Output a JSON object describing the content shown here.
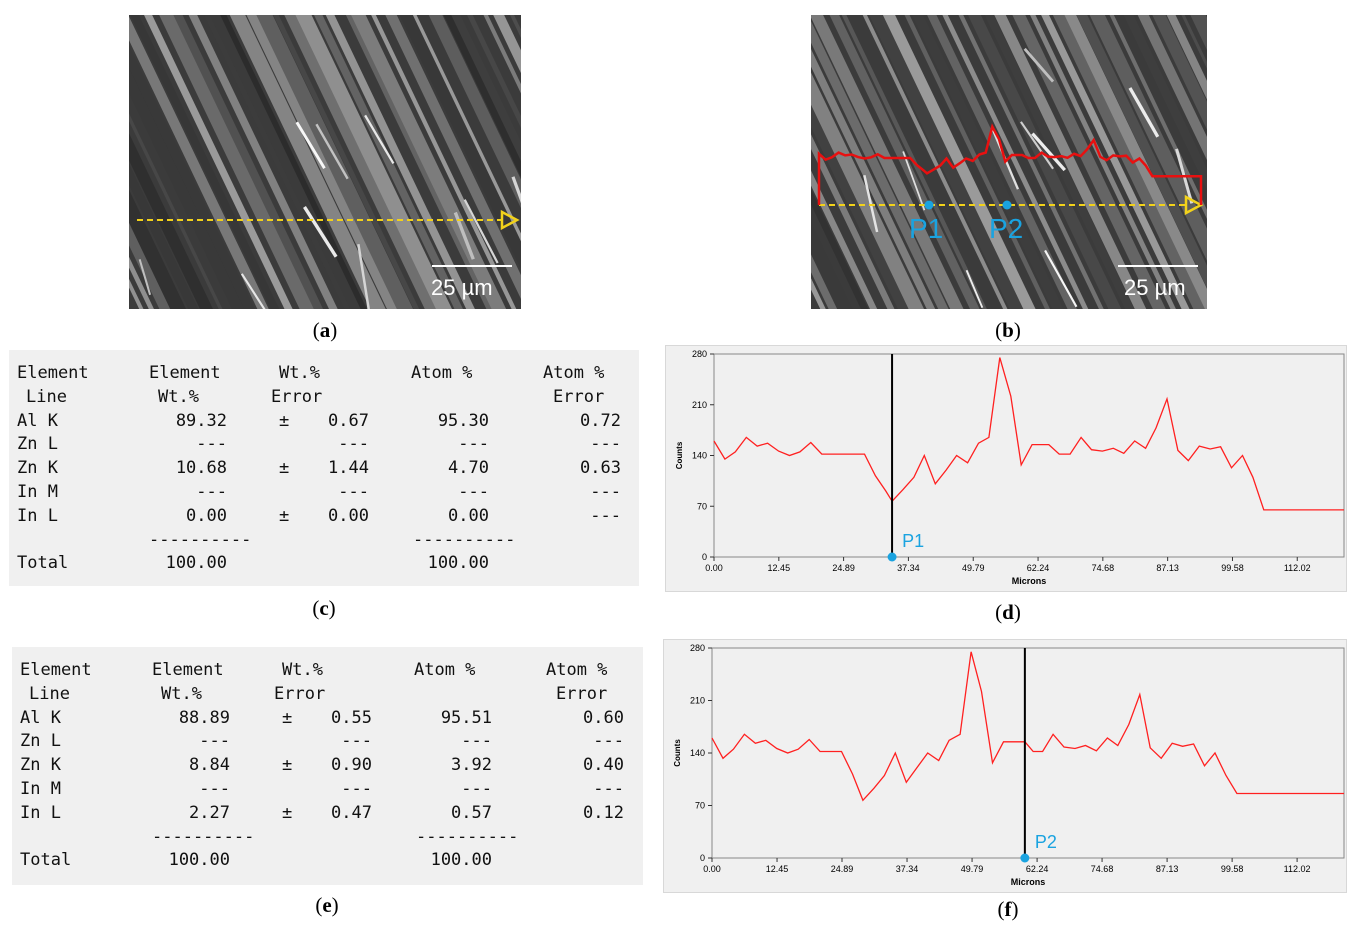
{
  "figures": {
    "a": {
      "caption": "a",
      "scale_bar": "25 µm"
    },
    "b": {
      "caption": "b",
      "scale_bar": "25 µm",
      "points": [
        "P1",
        "P2"
      ]
    },
    "c": {
      "caption": "c"
    },
    "d": {
      "caption": "d"
    },
    "e": {
      "caption": "e"
    },
    "f": {
      "caption": "f"
    }
  },
  "tables": {
    "headers": [
      [
        "Element",
        "Line"
      ],
      [
        "Element",
        "Wt.%"
      ],
      [
        "Wt.%",
        "Error"
      ],
      [
        "Atom %",
        ""
      ],
      [
        "Atom %",
        "Error"
      ]
    ],
    "c": {
      "rows": [
        [
          "Al K",
          "89.32",
          "±",
          "0.67",
          "95.30",
          "0.72"
        ],
        [
          "Zn L",
          "---",
          "",
          "---",
          "---",
          "---"
        ],
        [
          "Zn K",
          "10.68",
          "±",
          "1.44",
          "4.70",
          "0.63"
        ],
        [
          "In M",
          "---",
          "",
          "---",
          "---",
          "---"
        ],
        [
          "In L",
          "0.00",
          "±",
          "0.00",
          "0.00",
          "---"
        ]
      ],
      "separator": "----------",
      "total": [
        "Total",
        "100.00",
        "100.00"
      ]
    },
    "e": {
      "rows": [
        [
          "Al K",
          "88.89",
          "±",
          "0.55",
          "95.51",
          "0.60"
        ],
        [
          "Zn L",
          "---",
          "",
          "---",
          "---",
          "---"
        ],
        [
          "Zn K",
          "8.84",
          "±",
          "0.90",
          "3.92",
          "0.40"
        ],
        [
          "In M",
          "---",
          "",
          "---",
          "---",
          "---"
        ],
        [
          "In L",
          "2.27",
          "±",
          "0.47",
          "0.57",
          "0.12"
        ]
      ],
      "separator": "----------",
      "total": [
        "Total",
        "100.00",
        "100.00"
      ]
    }
  },
  "chart_data": [
    {
      "type": "line",
      "panel": "d",
      "xlabel": "Microns",
      "ylabel": "Counts",
      "x_ticks": [
        "0.00",
        "12.45",
        "24.89",
        "37.34",
        "49.79",
        "62.24",
        "74.68",
        "87.13",
        "99.58",
        "112.02"
      ],
      "y_ticks": [
        "0",
        "70",
        "140",
        "210",
        "280"
      ],
      "xlim": [
        0,
        121
      ],
      "ylim": [
        0,
        280
      ],
      "marker": {
        "label": "P1",
        "x": 34.2
      },
      "series_color": "#ff2020",
      "x": [
        0,
        2.1,
        4.1,
        6.2,
        8.3,
        10.3,
        12.4,
        14.5,
        16.5,
        18.6,
        20.7,
        22.7,
        24.8,
        26.9,
        28.9,
        31,
        33,
        34.2,
        36.3,
        38.4,
        40.4,
        42.5,
        44.6,
        46.6,
        48.7,
        50.8,
        52.8,
        54.9,
        57,
        59,
        61.1,
        62.8,
        64.3,
        66.3,
        68.4,
        70.5,
        72.5,
        74.6,
        76.7,
        78.7,
        80.8,
        82.9,
        84.9,
        87,
        89.1,
        91.1,
        93.2,
        95.3,
        97.3,
        99.4,
        101.5,
        103.5,
        105.6,
        107.7,
        109.7,
        111.8,
        113.9,
        115.9,
        118,
        121
      ],
      "y": [
        160,
        135,
        145,
        165,
        153,
        157,
        146,
        140,
        145,
        158,
        142,
        142,
        142,
        142,
        142,
        112,
        91,
        77,
        93,
        110,
        140,
        101,
        120,
        140,
        130,
        157,
        165,
        275,
        222,
        127,
        155,
        155,
        155,
        142,
        142,
        165,
        148,
        146,
        150,
        143,
        160,
        150,
        178,
        218,
        147,
        133,
        153,
        149,
        152,
        123,
        140,
        110,
        65,
        65,
        65,
        65,
        65,
        65,
        65,
        65
      ]
    },
    {
      "type": "line",
      "panel": "f",
      "xlabel": "Microns",
      "ylabel": "Counts",
      "x_ticks": [
        "0.00",
        "12.45",
        "24.89",
        "37.34",
        "49.79",
        "62.24",
        "74.68",
        "87.13",
        "99.58",
        "112.02"
      ],
      "y_ticks": [
        "0",
        "70",
        "140",
        "210",
        "280"
      ],
      "xlim": [
        0,
        121
      ],
      "ylim": [
        0,
        280
      ],
      "marker": {
        "label": "P2",
        "x": 59.9
      },
      "series_color": "#ff2020",
      "x": [
        0,
        2.1,
        4.1,
        6.2,
        8.3,
        10.3,
        12.4,
        14.5,
        16.5,
        18.6,
        20.7,
        22.7,
        24.8,
        26.9,
        28.9,
        31,
        33,
        35.1,
        37.2,
        39.2,
        41.3,
        43.4,
        45.4,
        47.5,
        49.6,
        51.6,
        53.7,
        55.8,
        57.8,
        59.9,
        61.5,
        63.3,
        65.3,
        67.4,
        69.5,
        71.5,
        73.6,
        75.7,
        77.7,
        79.8,
        81.9,
        83.9,
        86,
        88.1,
        90.1,
        92.2,
        94.3,
        96.3,
        98.4,
        100.5,
        102.5,
        104.6,
        106.7,
        108.7,
        110.8,
        112.9,
        114.9,
        117,
        119.1,
        121
      ],
      "y": [
        160,
        133,
        145,
        165,
        153,
        157,
        146,
        140,
        145,
        158,
        142,
        142,
        142,
        112,
        77,
        93,
        110,
        140,
        101,
        120,
        140,
        130,
        157,
        165,
        275,
        222,
        127,
        155,
        155,
        155,
        142,
        142,
        165,
        148,
        146,
        150,
        143,
        160,
        150,
        178,
        218,
        147,
        133,
        153,
        149,
        152,
        123,
        140,
        110,
        86,
        86,
        86,
        86,
        86,
        86,
        86,
        86,
        86,
        86,
        86
      ]
    }
  ]
}
